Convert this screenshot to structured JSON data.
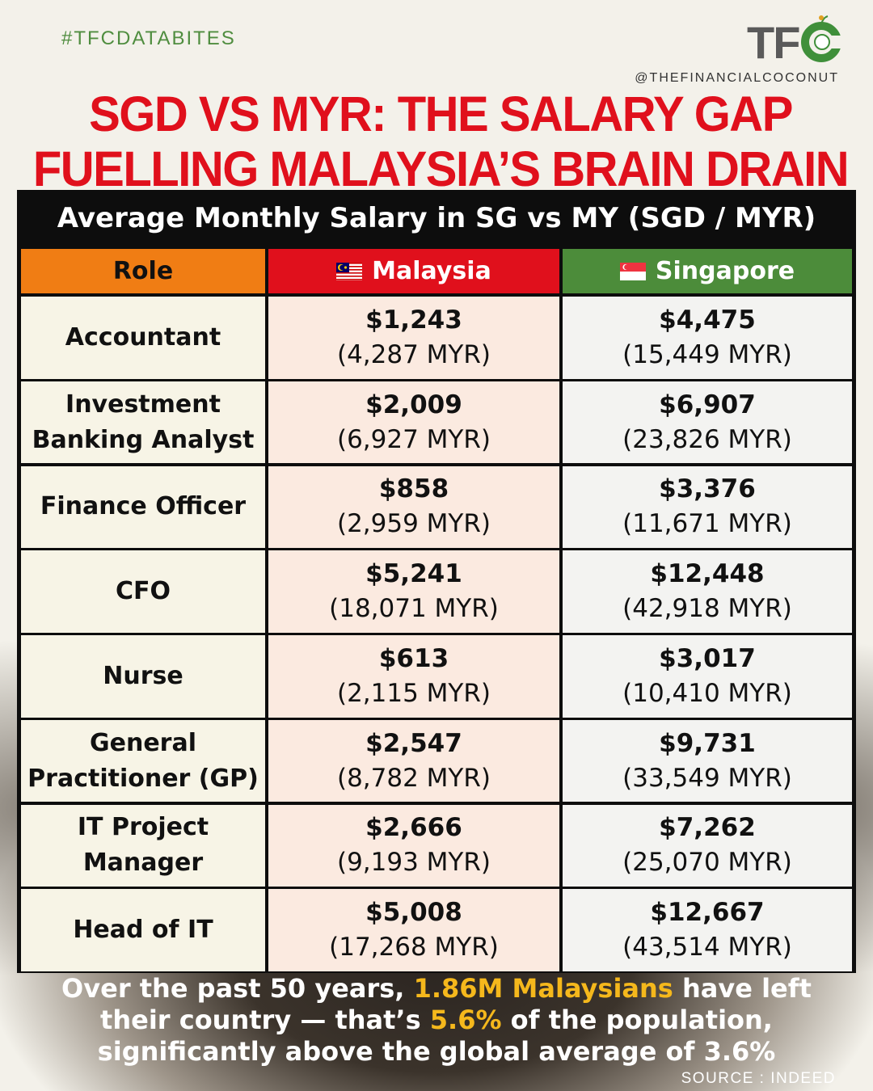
{
  "hashtag": "#TFCDATABITES",
  "brand": {
    "logo_text": "TFC",
    "handle": "@THEFINANCIALCOCONUT",
    "colors": {
      "grey": "#5a5a5a",
      "green": "#3f8f3a",
      "red": "#e0101c"
    }
  },
  "headline": {
    "line1": "SGD VS MYR: THE SALARY GAP",
    "line2": "FUELLING MALAYSIA’S BRAIN DRAIN",
    "color": "#e0101c"
  },
  "chart_data": {
    "type": "table",
    "title": "Average Monthly Salary in SG vs MY (SGD / MYR)",
    "columns": [
      "Role",
      "Malaysia",
      "Singapore"
    ],
    "column_colors": [
      "#f07d14",
      "#e0101c",
      "#4c8c3a"
    ],
    "rows": [
      {
        "role": "Accountant",
        "role_lines": [
          "Accountant"
        ],
        "my_sgd": "$1,243",
        "my_myr": "(4,287 MYR)",
        "sg_sgd": "$4,475",
        "sg_myr": "(15,449 MYR)"
      },
      {
        "role": "Investment Banking Analyst",
        "role_lines": [
          "Investment",
          "Banking Analyst"
        ],
        "my_sgd": "$2,009",
        "my_myr": "(6,927 MYR)",
        "sg_sgd": "$6,907",
        "sg_myr": "(23,826 MYR)"
      },
      {
        "role": "Finance Officer",
        "role_lines": [
          "Finance Officer"
        ],
        "my_sgd": "$858",
        "my_myr": "(2,959 MYR)",
        "sg_sgd": "$3,376",
        "sg_myr": "(11,671 MYR)"
      },
      {
        "role": "CFO",
        "role_lines": [
          "CFO"
        ],
        "my_sgd": "$5,241",
        "my_myr": "(18,071 MYR)",
        "sg_sgd": "$12,448",
        "sg_myr": "(42,918 MYR)"
      },
      {
        "role": "Nurse",
        "role_lines": [
          "Nurse"
        ],
        "my_sgd": "$613",
        "my_myr": "(2,115 MYR)",
        "sg_sgd": "$3,017",
        "sg_myr": "(10,410 MYR)"
      },
      {
        "role": "General Practitioner (GP)",
        "role_lines": [
          "General",
          "Practitioner (GP)"
        ],
        "my_sgd": "$2,547",
        "my_myr": "(8,782 MYR)",
        "sg_sgd": "$9,731",
        "sg_myr": "(33,549 MYR)"
      },
      {
        "role": "IT Project Manager",
        "role_lines": [
          "IT Project",
          "Manager"
        ],
        "my_sgd": "$2,666",
        "my_myr": "(9,193 MYR)",
        "sg_sgd": "$7,262",
        "sg_myr": "(25,070 MYR)"
      },
      {
        "role": "Head of IT",
        "role_lines": [
          "Head of IT"
        ],
        "my_sgd": "$5,008",
        "my_myr": "(17,268 MYR)",
        "sg_sgd": "$12,667",
        "sg_myr": "(43,514 MYR)"
      }
    ]
  },
  "footer": {
    "p1": "Over the past 50 years, ",
    "h1": "1.86M Malaysians",
    "p2": " have left",
    "p3": "their country — that’s ",
    "h2": "5.6%",
    "p4": " of the population,",
    "p5": "significantly above the global average of 3.6%",
    "highlight_color": "#f5b81c"
  },
  "source": "SOURCE : INDEED"
}
